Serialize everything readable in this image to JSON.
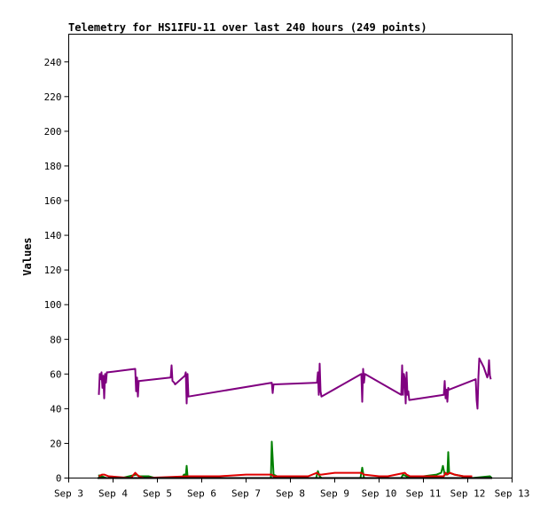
{
  "chart_data": {
    "type": "line",
    "title": "Telemetry for HS1IFU-11 over last 240 hours (249 points)",
    "xlabel": "",
    "ylabel": "Values",
    "x_ticks": [
      "Sep 3",
      "Sep 4",
      "Sep 5",
      "Sep 6",
      "Sep 7",
      "Sep 8",
      "Sep 9",
      "Sep 10",
      "Sep 11",
      "Sep 12",
      "Sep 13"
    ],
    "xlim": [
      3,
      13
    ],
    "ylim": [
      0,
      256
    ],
    "y_ticks": [
      0,
      20,
      40,
      60,
      80,
      100,
      120,
      140,
      160,
      180,
      200,
      220,
      240
    ],
    "grid": false,
    "series": [
      {
        "color": "#800080",
        "points": [
          [
            3.68,
            48
          ],
          [
            3.7,
            60
          ],
          [
            3.72,
            57
          ],
          [
            3.74,
            61
          ],
          [
            3.76,
            52
          ],
          [
            3.78,
            59
          ],
          [
            3.8,
            46
          ],
          [
            3.82,
            60
          ],
          [
            3.84,
            55
          ],
          [
            3.86,
            61
          ],
          [
            3.88,
            61
          ],
          [
            4.5,
            63
          ],
          [
            4.52,
            50
          ],
          [
            4.54,
            58
          ],
          [
            4.56,
            47
          ],
          [
            4.58,
            56
          ],
          [
            4.6,
            56
          ],
          [
            5.3,
            58
          ],
          [
            5.32,
            65
          ],
          [
            5.34,
            56
          ],
          [
            5.38,
            55
          ],
          [
            5.4,
            54
          ],
          [
            5.62,
            59
          ],
          [
            5.64,
            61
          ],
          [
            5.66,
            43
          ],
          [
            5.68,
            60
          ],
          [
            5.7,
            47
          ],
          [
            7.58,
            55
          ],
          [
            7.6,
            49
          ],
          [
            7.62,
            54
          ],
          [
            7.64,
            54
          ],
          [
            8.6,
            55
          ],
          [
            8.62,
            61
          ],
          [
            8.64,
            48
          ],
          [
            8.66,
            66
          ],
          [
            8.68,
            50
          ],
          [
            8.7,
            47
          ],
          [
            9.6,
            60
          ],
          [
            9.62,
            44
          ],
          [
            9.64,
            63
          ],
          [
            9.66,
            55
          ],
          [
            9.68,
            60
          ],
          [
            10.5,
            48
          ],
          [
            10.52,
            65
          ],
          [
            10.54,
            48
          ],
          [
            10.56,
            60
          ],
          [
            10.58,
            57
          ],
          [
            10.6,
            43
          ],
          [
            10.62,
            61
          ],
          [
            10.64,
            48
          ],
          [
            10.66,
            50
          ],
          [
            10.68,
            45
          ],
          [
            11.46,
            48
          ],
          [
            11.48,
            56
          ],
          [
            11.5,
            46
          ],
          [
            11.52,
            51
          ],
          [
            11.54,
            44
          ],
          [
            11.56,
            52
          ],
          [
            11.58,
            51
          ],
          [
            12.18,
            57
          ],
          [
            12.2,
            45
          ],
          [
            12.22,
            40
          ],
          [
            12.24,
            58
          ],
          [
            12.26,
            69
          ],
          [
            12.3,
            67
          ],
          [
            12.36,
            64
          ],
          [
            12.44,
            58
          ],
          [
            12.46,
            60
          ],
          [
            12.48,
            68
          ],
          [
            12.5,
            59
          ],
          [
            12.52,
            57
          ]
        ]
      },
      {
        "color": "#008000",
        "points": [
          [
            3.68,
            2
          ],
          [
            3.7,
            0
          ],
          [
            3.75,
            1
          ],
          [
            3.85,
            0
          ],
          [
            4.2,
            0
          ],
          [
            4.52,
            2
          ],
          [
            4.6,
            1
          ],
          [
            4.8,
            1
          ],
          [
            4.95,
            0
          ],
          [
            5.3,
            0
          ],
          [
            5.55,
            0
          ],
          [
            5.6,
            2
          ],
          [
            5.62,
            2
          ],
          [
            5.64,
            1
          ],
          [
            5.66,
            7
          ],
          [
            5.68,
            1
          ],
          [
            5.8,
            0
          ],
          [
            7.0,
            0
          ],
          [
            7.4,
            0
          ],
          [
            7.56,
            0
          ],
          [
            7.58,
            21
          ],
          [
            7.62,
            2
          ],
          [
            7.7,
            1
          ],
          [
            8.0,
            0
          ],
          [
            8.58,
            0
          ],
          [
            8.62,
            4
          ],
          [
            8.66,
            1
          ],
          [
            8.7,
            0
          ],
          [
            9.0,
            0
          ],
          [
            9.58,
            0
          ],
          [
            9.62,
            6
          ],
          [
            9.66,
            0
          ],
          [
            10.0,
            0
          ],
          [
            10.5,
            0
          ],
          [
            10.54,
            2
          ],
          [
            10.62,
            1
          ],
          [
            11.0,
            1
          ],
          [
            11.3,
            2
          ],
          [
            11.4,
            3
          ],
          [
            11.44,
            7
          ],
          [
            11.48,
            2
          ],
          [
            11.54,
            2
          ],
          [
            11.56,
            15
          ],
          [
            11.58,
            3
          ],
          [
            11.7,
            2
          ],
          [
            11.9,
            1
          ],
          [
            12.1,
            0
          ],
          [
            12.5,
            1
          ],
          [
            12.54,
            0
          ]
        ]
      },
      {
        "color": "#e00000",
        "points": [
          [
            3.68,
            1
          ],
          [
            3.75,
            2
          ],
          [
            3.8,
            2
          ],
          [
            3.9,
            1
          ],
          [
            4.4,
            0
          ],
          [
            4.5,
            3
          ],
          [
            4.54,
            2
          ],
          [
            4.58,
            1
          ],
          [
            4.7,
            0
          ],
          [
            5.7,
            1
          ],
          [
            6.4,
            1
          ],
          [
            7.0,
            2
          ],
          [
            7.2,
            2
          ],
          [
            7.58,
            2
          ],
          [
            7.62,
            1
          ],
          [
            8.0,
            1
          ],
          [
            8.4,
            1
          ],
          [
            8.6,
            3
          ],
          [
            8.64,
            2
          ],
          [
            8.7,
            2
          ],
          [
            9.0,
            3
          ],
          [
            9.4,
            3
          ],
          [
            9.6,
            3
          ],
          [
            9.66,
            2
          ],
          [
            10.0,
            1
          ],
          [
            10.2,
            1
          ],
          [
            10.58,
            3
          ],
          [
            10.62,
            2
          ],
          [
            10.7,
            1
          ],
          [
            11.2,
            1
          ],
          [
            11.46,
            1
          ],
          [
            11.5,
            3
          ],
          [
            11.54,
            2
          ],
          [
            11.6,
            3
          ],
          [
            11.7,
            2
          ],
          [
            11.9,
            1
          ],
          [
            12.1,
            1
          ]
        ]
      },
      {
        "color": "#000000",
        "points": [
          [
            3.65,
            0
          ],
          [
            12.55,
            0
          ]
        ]
      }
    ]
  }
}
